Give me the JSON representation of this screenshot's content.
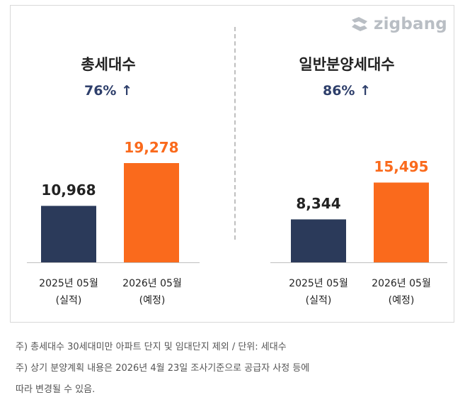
{
  "logo": {
    "text": "zigbang",
    "icon": "zigbang-logo-icon",
    "color": "#b9bec4"
  },
  "colors": {
    "actual": "#2b3a5a",
    "forecast": "#fa6a1c",
    "growth": "#2e3f6b"
  },
  "chart_data": [
    {
      "type": "bar",
      "title": "총세대수",
      "growth": "76% ↑",
      "categories": [
        "2025년 05월",
        "2026년 05월"
      ],
      "category_notes": [
        "(실적)",
        "(예정)"
      ],
      "values": [
        10968,
        19278
      ],
      "value_labels": [
        "10,968",
        "19,278"
      ]
    },
    {
      "type": "bar",
      "title": "일반분양세대수",
      "growth": "86% ↑",
      "categories": [
        "2025년 05월",
        "2026년 05월"
      ],
      "category_notes": [
        "(실적)",
        "(예정)"
      ],
      "values": [
        8344,
        15495
      ],
      "value_labels": [
        "8,344",
        "15,495"
      ]
    }
  ],
  "footnotes": [
    "주) 총세대수 30세대미만 아파트  단지 및 임대단지 제외 / 단위: 세대수",
    "주) 상기 분양계획 내용은 2026년 4월 23일 조사기준으로 공급자 사정 등에",
    "따라 변경될 수 있음."
  ]
}
